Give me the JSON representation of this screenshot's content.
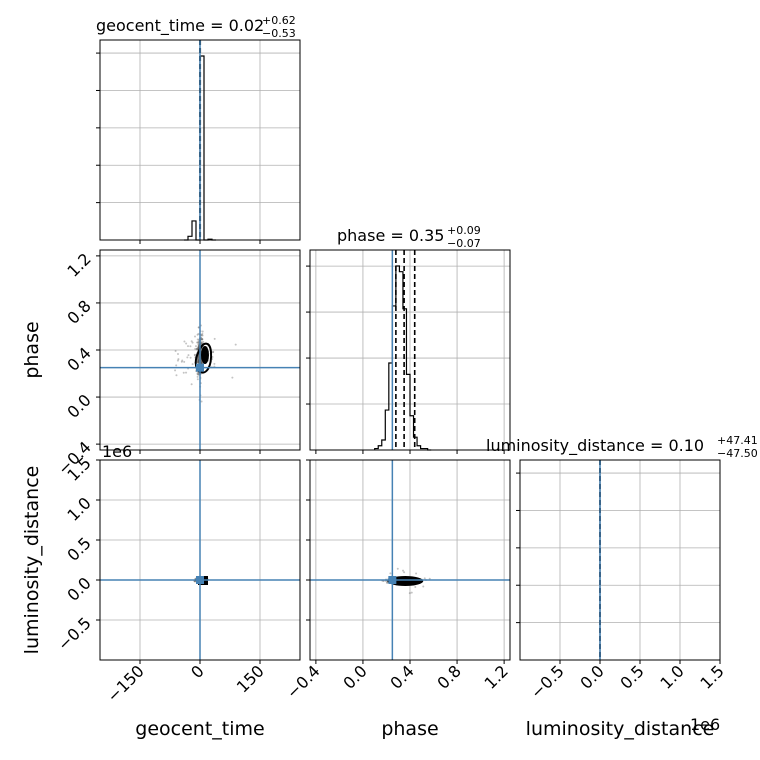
{
  "chart_data": {
    "type": "corner",
    "parameters": [
      "geocent_time",
      "phase",
      "luminosity_distance"
    ],
    "titles": [
      {
        "name": "geocent_time",
        "median": "0.02",
        "plus": "+0.62",
        "minus": "−0.53"
      },
      {
        "name": "phase",
        "median": "0.35",
        "plus": "+0.09",
        "minus": "−0.07"
      },
      {
        "name": "luminosity_distance",
        "median": "0.10",
        "plus": "+47.41",
        "minus": "−47.50"
      }
    ],
    "truths": {
      "geocent_time": 0.0,
      "phase": 0.25,
      "luminosity_distance": 0.0
    },
    "quantiles": {
      "geocent_time": [
        -0.51,
        0.02,
        0.64
      ],
      "phase": [
        0.28,
        0.35,
        0.44
      ],
      "luminosity_distance": [
        -47.4,
        0.1,
        47.5
      ]
    },
    "ranges": {
      "geocent_time": [
        -250,
        250
      ],
      "phase": [
        -0.45,
        1.25
      ],
      "luminosity_distance": [
        -1000000,
        1500000
      ]
    },
    "ticks": {
      "geocent_time": {
        "values": [
          -150,
          0,
          150
        ],
        "labels": [
          "−150",
          "0",
          "150"
        ]
      },
      "phase": {
        "values": [
          -0.4,
          0.0,
          0.4,
          0.8,
          1.2
        ],
        "labels": [
          "−0.4",
          "0.0",
          "0.4",
          "0.8",
          "1.2"
        ]
      },
      "luminosity_distance": {
        "values": [
          -500000,
          0,
          500000,
          1000000,
          1500000
        ],
        "labels": [
          "−0.5",
          "0.0",
          "0.5",
          "1.0",
          "1.5"
        ]
      }
    },
    "hist1d": {
      "geocent_time": {
        "edges": [
          -40,
          -30,
          -20,
          -10,
          0,
          10,
          20,
          30,
          40
        ],
        "counts": [
          0,
          5,
          26,
          0,
          251,
          0,
          1,
          0
        ]
      },
      "phase": {
        "edges": [
          0.1,
          0.13,
          0.16,
          0.19,
          0.22,
          0.25,
          0.28,
          0.31,
          0.34,
          0.37,
          0.4,
          0.43,
          0.46,
          0.49,
          0.52,
          0.55,
          0.58
        ],
        "counts": [
          1,
          3,
          7,
          28,
          61,
          101,
          129,
          125,
          99,
          53,
          24,
          9,
          3,
          1,
          1,
          0
        ]
      },
      "luminosity_distance": {
        "edges": [
          -60,
          -40,
          -20,
          0,
          20,
          40,
          60
        ],
        "counts": [
          0,
          0,
          100,
          100,
          0,
          0
        ]
      }
    },
    "grid": true,
    "grid_color": "#b0b0b0",
    "truth_color": "#4682b4",
    "offset_texts": {
      "luminosity_distance_y": "1e6",
      "luminosity_distance_x": "1e6"
    }
  }
}
